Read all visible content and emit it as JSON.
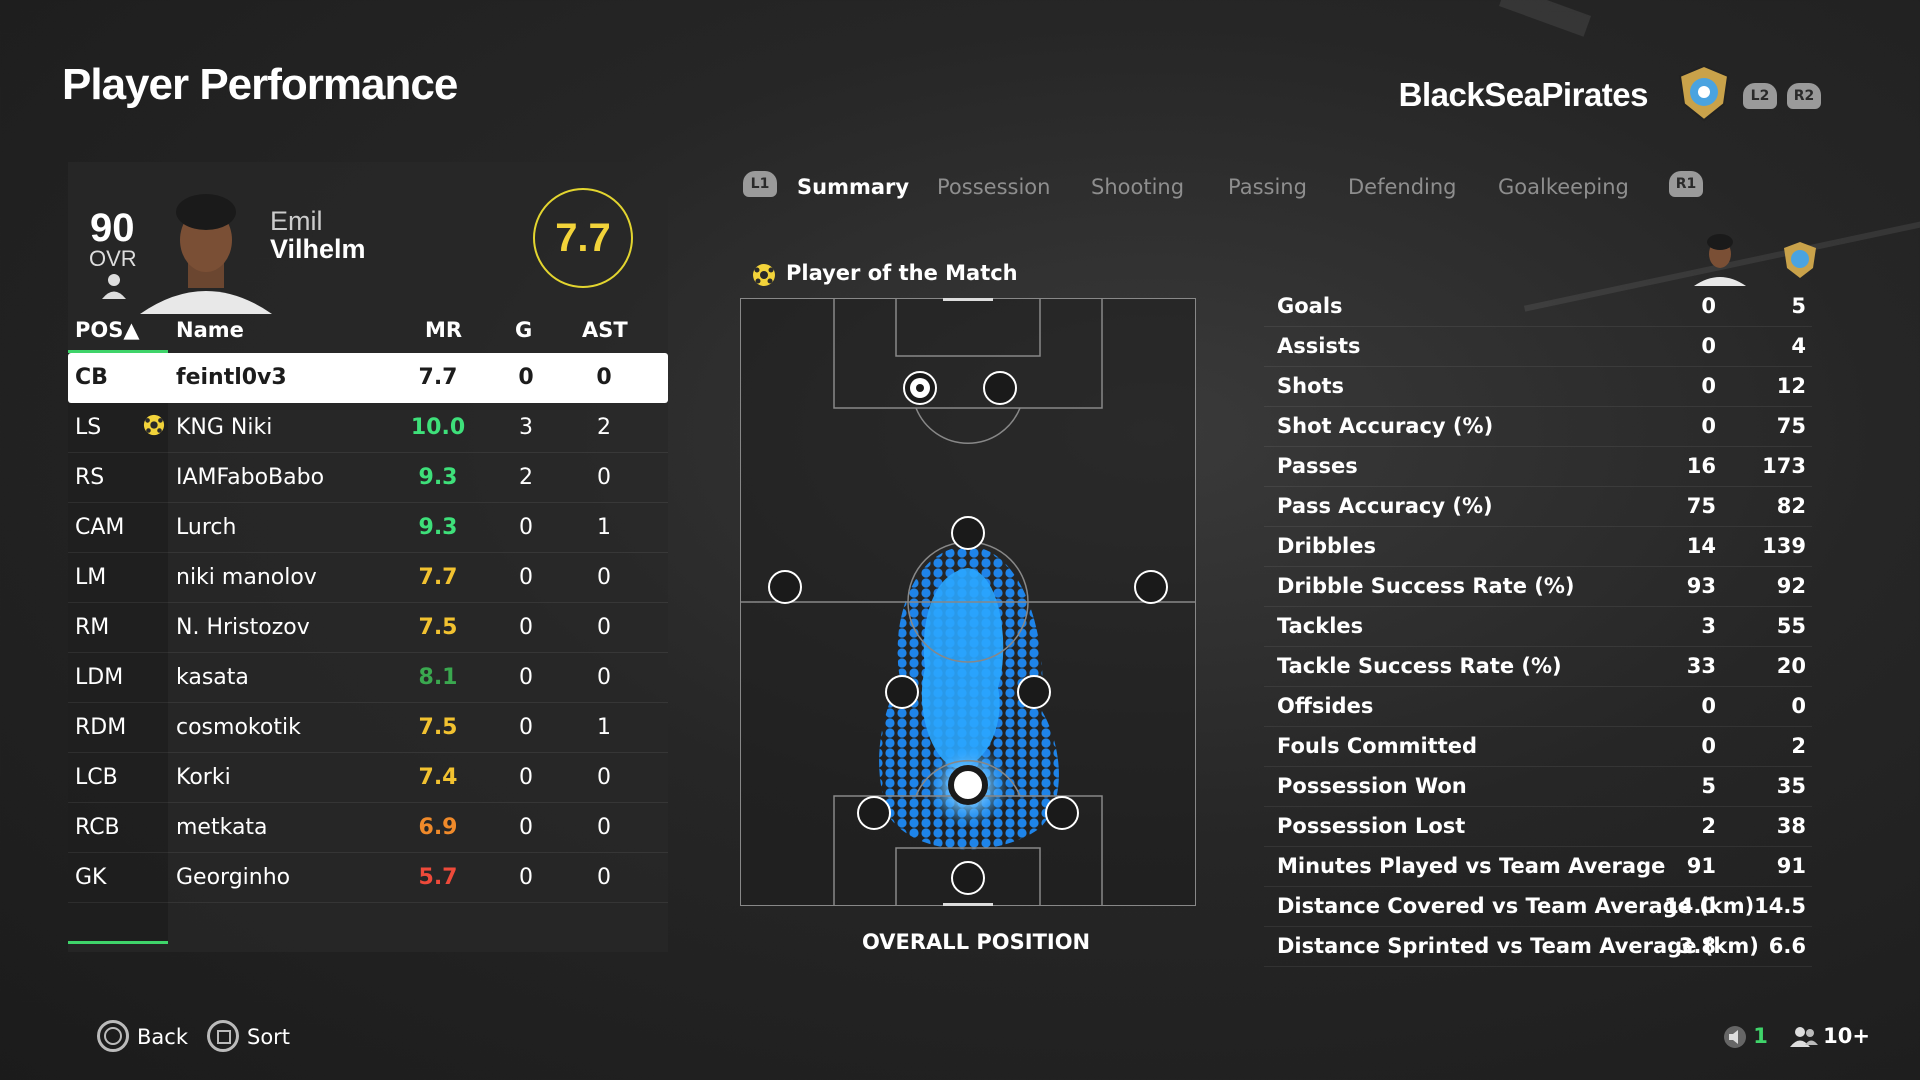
{
  "page": {
    "title": "Player Performance"
  },
  "team": {
    "name": "BlackSeaPirates",
    "hint_l2": "L2",
    "hint_r2": "R2"
  },
  "player": {
    "ovr": "90",
    "ovr_label": "OVR",
    "first_name": "Emil",
    "last_name": "Vilhelm",
    "match_rating": "7.7"
  },
  "table": {
    "headers": {
      "pos": "POS▲",
      "name": "Name",
      "mr": "MR",
      "g": "G",
      "ast": "AST"
    },
    "rows": [
      {
        "pos": "CB",
        "name": "feintl0v3",
        "mr": "7.7",
        "g": "0",
        "ast": "0",
        "mr_color": "#1c1c1c"
      },
      {
        "pos": "LS",
        "name": "KNG Niki",
        "mr": "10.0",
        "g": "3",
        "ast": "2",
        "mr_color": "#3ee07a"
      },
      {
        "pos": "RS",
        "name": "IAMFaboBabo",
        "mr": "9.3",
        "g": "2",
        "ast": "0",
        "mr_color": "#3ee07a"
      },
      {
        "pos": "CAM",
        "name": "Lurch",
        "mr": "9.3",
        "g": "0",
        "ast": "1",
        "mr_color": "#3ee07a"
      },
      {
        "pos": "LM",
        "name": "niki manolov",
        "mr": "7.7",
        "g": "0",
        "ast": "0",
        "mr_color": "#f2c230"
      },
      {
        "pos": "RM",
        "name": "N. Hristozov",
        "mr": "7.5",
        "g": "0",
        "ast": "0",
        "mr_color": "#f2c230"
      },
      {
        "pos": "LDM",
        "name": "kasata",
        "mr": "8.1",
        "g": "0",
        "ast": "0",
        "mr_color": "#3aa84f"
      },
      {
        "pos": "RDM",
        "name": "cosmokotik",
        "mr": "7.5",
        "g": "0",
        "ast": "1",
        "mr_color": "#f2c230"
      },
      {
        "pos": "LCB",
        "name": "Korki",
        "mr": "7.4",
        "g": "0",
        "ast": "0",
        "mr_color": "#f2c230"
      },
      {
        "pos": "RCB",
        "name": "metkata",
        "mr": "6.9",
        "g": "0",
        "ast": "0",
        "mr_color": "#f08a2a"
      },
      {
        "pos": "GK",
        "name": "Georginho",
        "mr": "5.7",
        "g": "0",
        "ast": "0",
        "mr_color": "#ee4a3a"
      }
    ]
  },
  "tabs": {
    "hint_l1": "L1",
    "hint_r1": "R1",
    "items": [
      "Summary",
      "Possession",
      "Shooting",
      "Passing",
      "Defending",
      "Goalkeeping"
    ],
    "active": "Summary"
  },
  "pitch": {
    "potm_label": "Player of the Match",
    "caption": "OVERALL POSITION"
  },
  "stats": {
    "rows": [
      {
        "label": "Goals",
        "player": "0",
        "team": "5"
      },
      {
        "label": "Assists",
        "player": "0",
        "team": "4"
      },
      {
        "label": "Shots",
        "player": "0",
        "team": "12"
      },
      {
        "label": "Shot Accuracy (%)",
        "player": "0",
        "team": "75"
      },
      {
        "label": "Passes",
        "player": "16",
        "team": "173"
      },
      {
        "label": "Pass Accuracy (%)",
        "player": "75",
        "team": "82"
      },
      {
        "label": "Dribbles",
        "player": "14",
        "team": "139"
      },
      {
        "label": "Dribble Success Rate (%)",
        "player": "93",
        "team": "92"
      },
      {
        "label": "Tackles",
        "player": "3",
        "team": "55"
      },
      {
        "label": "Tackle Success Rate (%)",
        "player": "33",
        "team": "20"
      },
      {
        "label": "Offsides",
        "player": "0",
        "team": "0"
      },
      {
        "label": "Fouls Committed",
        "player": "0",
        "team": "2"
      },
      {
        "label": "Possession Won",
        "player": "5",
        "team": "35"
      },
      {
        "label": "Possession Lost",
        "player": "2",
        "team": "38"
      },
      {
        "label": "Minutes Played vs Team Average",
        "player": "91",
        "team": "91"
      },
      {
        "label": "Distance Covered vs Team Average (km)",
        "player": "14.0",
        "team": "14.5"
      },
      {
        "label": "Distance Sprinted vs Team Average (km)",
        "player": "3.8",
        "team": "6.6"
      }
    ]
  },
  "footer": {
    "back_label": "Back",
    "sort_label": "Sort",
    "notif_count": "1",
    "players_count": "10+"
  },
  "colors": {
    "accent_green": "#3fd46a",
    "rating_yellow": "#f2d33a",
    "heat_blue": "#1e9bff"
  }
}
